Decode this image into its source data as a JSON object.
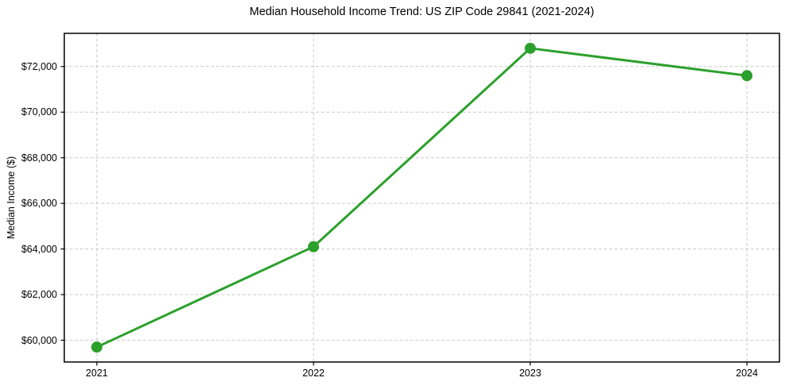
{
  "chart_data": {
    "type": "line",
    "title": "Median Household Income Trend: US ZIP Code 29841 (2021-2024)",
    "xlabel": "",
    "ylabel": "Median Income ($)",
    "x": [
      2021,
      2022,
      2023,
      2024
    ],
    "series": [
      {
        "name": "median-household-income",
        "values": [
          59700,
          64100,
          72800,
          71600
        ]
      }
    ],
    "xticks": {
      "values": [
        2021,
        2022,
        2023,
        2024
      ],
      "labels": [
        "2021",
        "2022",
        "2023",
        "2024"
      ]
    },
    "yticks": {
      "values": [
        60000,
        62000,
        64000,
        66000,
        68000,
        70000,
        72000
      ],
      "labels": [
        "$60,000",
        "$62,000",
        "$64,000",
        "$66,000",
        "$68,000",
        "$70,000",
        "$72,000"
      ]
    },
    "xlim": [
      2020.85,
      2024.15
    ],
    "ylim": [
      59045,
      73455
    ],
    "grid": true,
    "grid_style": "dashed",
    "legend_position": "none",
    "marker": "circle",
    "colors": {
      "line": "#2ca02c",
      "marker": "#2ca02c",
      "grid": "#c9c9c9",
      "spine": "#000000",
      "tick": "#000000",
      "text": "#000000",
      "background": "#ffffff"
    }
  }
}
